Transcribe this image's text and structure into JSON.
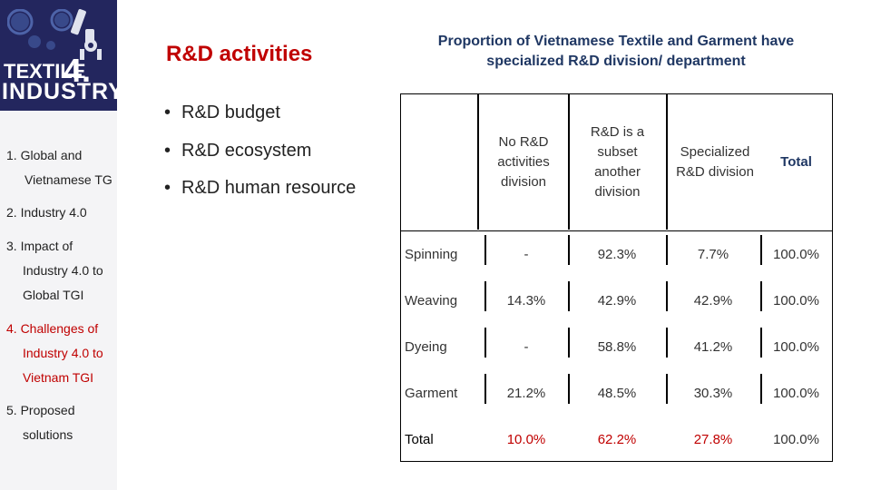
{
  "logo": {
    "line1": "TEXTILE",
    "digit": "4.",
    "line2": "INDUSTRY"
  },
  "nav": {
    "items": [
      {
        "lines": [
          "1. Global and",
          "Vietnamese TG"
        ],
        "active": false
      },
      {
        "lines": [
          "2. Industry 4.0"
        ],
        "active": false
      },
      {
        "lines": [
          "3. Impact of",
          "Industry 4.0 to",
          "Global TGI"
        ],
        "active": false
      },
      {
        "lines": [
          "4. Challenges of",
          "Industry 4.0 to",
          "Vietnam TGI"
        ],
        "active": true
      },
      {
        "lines": [
          "5. Proposed",
          "solutions"
        ],
        "active": false
      }
    ]
  },
  "slide": {
    "title": "R&D activities",
    "bullets": [
      "R&D budget",
      "R&D ecosystem",
      "R&D human resource"
    ],
    "bullet_glyph": "•"
  },
  "table": {
    "title_line1": "Proportion of Vietnamese Textile and Garment have",
    "title_line2": "specialized R&D division/ department",
    "columns": [
      {
        "key": "no_rd",
        "lines": [
          "No R&D",
          "activities",
          "division"
        ]
      },
      {
        "key": "subset",
        "lines": [
          "R&D is a",
          "subset",
          "another",
          "division"
        ]
      },
      {
        "key": "specialized",
        "lines": [
          "Specialized",
          "R&D division"
        ]
      },
      {
        "key": "total",
        "lines": [
          "Total"
        ]
      }
    ],
    "rows": [
      {
        "label": "Spinning",
        "values": [
          "-",
          "92.3%",
          "7.7%",
          "100.0%"
        ]
      },
      {
        "label": "Weaving",
        "values": [
          "14.3%",
          "42.9%",
          "42.9%",
          "100.0%"
        ]
      },
      {
        "label": "Dyeing",
        "values": [
          "-",
          "58.8%",
          "41.2%",
          "100.0%"
        ]
      },
      {
        "label": "Garment",
        "values": [
          "21.2%",
          "48.5%",
          "30.3%",
          "100.0%"
        ]
      },
      {
        "label": "Total",
        "values": [
          "10.0%",
          "62.2%",
          "27.8%",
          "100.0%"
        ]
      }
    ]
  }
}
